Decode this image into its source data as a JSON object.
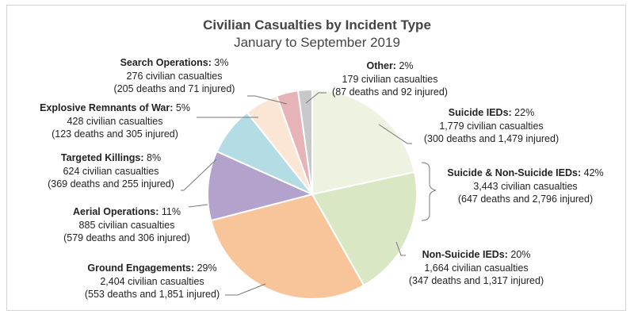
{
  "chart_data": {
    "type": "pie",
    "title": "Civilian Casualties by Incident Type",
    "subtitle": "January to September 2019",
    "slices": [
      {
        "name": "Suicide IEDs",
        "percent": 22,
        "casualties": 1779,
        "color": "#eef2e1"
      },
      {
        "name": "Non-Suicide IEDs",
        "percent": 20,
        "casualties": 1664,
        "color": "#d9e7c4"
      },
      {
        "name": "Ground Engagements",
        "percent": 29,
        "casualties": 2404,
        "color": "#f8c49a"
      },
      {
        "name": "Aerial Operations",
        "percent": 11,
        "casualties": 885,
        "color": "#b3a2cc"
      },
      {
        "name": "Targeted Killings",
        "percent": 8,
        "casualties": 624,
        "color": "#b3dce5"
      },
      {
        "name": "Explosive Remnants of War",
        "percent": 5,
        "casualties": 428,
        "color": "#fbe6d6"
      },
      {
        "name": "Search Operations",
        "percent": 3,
        "casualties": 276,
        "color": "#e6b3b6"
      },
      {
        "name": "Other",
        "percent": 2,
        "casualties": 179,
        "color": "#c8c8c8"
      }
    ]
  },
  "labels": {
    "other": {
      "name": "Other:",
      "pct": " 2%",
      "line2": "179 civilian casualties",
      "line3": "(87 deaths and 92 injured)"
    },
    "suicide": {
      "name": "Suicide IEDs:",
      "pct": " 22%",
      "line2": "1,779 civilian casualties",
      "line3": "(300 deaths and  1,479  injured)"
    },
    "combined": {
      "name": "Suicide & Non-Suicide IEDs:",
      "pct": " 42%",
      "line2": "3,443 civilian casualties",
      "line3": "(647 deaths and 2,796 injured)"
    },
    "nonsuicide": {
      "name": "Non-Suicide IEDs:",
      "pct": " 20%",
      "line2": "1,664 civilian casualties",
      "line3": "(347 deaths and 1,317 injured)"
    },
    "ground": {
      "name": "Ground Engagements:",
      "pct": " 29%",
      "line2": "2,404 civilian casualties",
      "line3": "(553 deaths and 1,851 injured)"
    },
    "aerial": {
      "name": "Aerial Operations:",
      "pct": " 11%",
      "line2": "885 civilian casualties",
      "line3": "(579 deaths and  306  injured)"
    },
    "targeted": {
      "name": "Targeted Killings:",
      "pct": " 8%",
      "line2": "624 civilian casualties",
      "line3": "(369 deaths and 255  injured)"
    },
    "erw": {
      "name": "Explosive Remnants of War:",
      "pct": " 5%",
      "line2": "428 civilian casualties",
      "line3": "(123 deaths and 305  injured)"
    },
    "search": {
      "name": "Search Operations:",
      "pct": " 3%",
      "line2": "276 civilian casualties",
      "line3": "(205 deaths and  71  injured)"
    }
  }
}
